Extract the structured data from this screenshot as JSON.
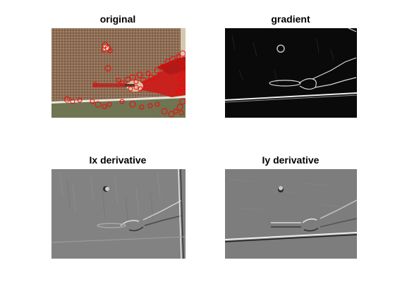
{
  "figure": {
    "panels": [
      {
        "title": "original",
        "image": "photo with detected corner points"
      },
      {
        "title": "gradient",
        "image": "gradient magnitude"
      },
      {
        "title": "Ix derivative",
        "image": "horizontal derivative"
      },
      {
        "title": "Iy derivative",
        "image": "vertical derivative"
      }
    ]
  },
  "colors": {
    "background": "#ffffff",
    "title_text": "#000000",
    "wall_brown": "#8a6a52",
    "sleeve_red": "#c8211e",
    "marker_red": "#ff0000",
    "gradient_bg": "#0a0a0a",
    "derivative_bg": "#7d7d7d"
  }
}
